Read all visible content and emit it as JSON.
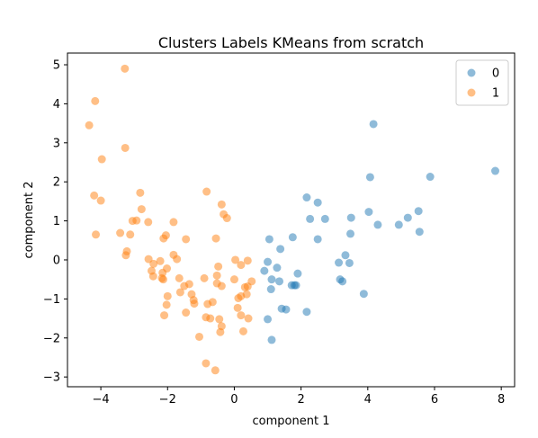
{
  "chart_data": {
    "type": "scatter",
    "title": "Clusters Labels KMeans from scratch",
    "xlabel": "component 1",
    "ylabel": "component 2",
    "xlim": [
      -5.0,
      8.4
    ],
    "ylim": [
      -3.25,
      5.3
    ],
    "xticks": [
      -4,
      -2,
      0,
      2,
      4,
      6,
      8
    ],
    "yticks": [
      -3,
      -2,
      -1,
      0,
      1,
      2,
      3,
      4,
      5
    ],
    "grid": false,
    "legend": {
      "placement": "top-right"
    },
    "series": [
      {
        "name": "0",
        "color": "#1f77b4",
        "points": [
          [
            7.82,
            2.28
          ],
          [
            5.87,
            2.13
          ],
          [
            5.52,
            1.25
          ],
          [
            5.55,
            0.72
          ],
          [
            5.2,
            1.08
          ],
          [
            4.93,
            0.9
          ],
          [
            4.17,
            3.48
          ],
          [
            4.07,
            2.12
          ],
          [
            4.03,
            1.23
          ],
          [
            4.3,
            0.9
          ],
          [
            3.88,
            -0.87
          ],
          [
            3.48,
            0.67
          ],
          [
            3.5,
            1.08
          ],
          [
            3.33,
            0.12
          ],
          [
            3.45,
            -0.08
          ],
          [
            3.13,
            -0.07
          ],
          [
            3.17,
            -0.5
          ],
          [
            3.24,
            -0.55
          ],
          [
            2.72,
            1.05
          ],
          [
            2.5,
            1.47
          ],
          [
            2.17,
            1.6
          ],
          [
            2.27,
            1.05
          ],
          [
            2.5,
            0.53
          ],
          [
            2.17,
            -1.33
          ],
          [
            1.9,
            -0.35
          ],
          [
            1.85,
            -0.65
          ],
          [
            1.8,
            -0.65
          ],
          [
            1.72,
            -0.65
          ],
          [
            1.75,
            0.58
          ],
          [
            1.38,
            0.28
          ],
          [
            1.28,
            -0.2
          ],
          [
            1.35,
            -0.55
          ],
          [
            1.42,
            -1.25
          ],
          [
            1.55,
            -1.27
          ],
          [
            1.05,
            0.53
          ],
          [
            1.12,
            -0.5
          ],
          [
            1.1,
            -0.75
          ],
          [
            1.0,
            -0.05
          ],
          [
            0.9,
            -0.28
          ],
          [
            1.0,
            -1.52
          ],
          [
            1.12,
            -2.05
          ]
        ]
      },
      {
        "name": "1",
        "color": "#ff7f0e",
        "points": [
          [
            -3.28,
            4.9
          ],
          [
            -4.17,
            4.07
          ],
          [
            -4.35,
            3.45
          ],
          [
            -3.27,
            2.87
          ],
          [
            -3.97,
            2.58
          ],
          [
            -4.2,
            1.65
          ],
          [
            -4.0,
            1.52
          ],
          [
            -4.15,
            0.65
          ],
          [
            -3.42,
            0.69
          ],
          [
            -3.12,
            0.65
          ],
          [
            -2.82,
            1.72
          ],
          [
            -2.78,
            1.3
          ],
          [
            -3.05,
            1.0
          ],
          [
            -2.93,
            1.01
          ],
          [
            -2.58,
            0.97
          ],
          [
            -3.25,
            0.12
          ],
          [
            -3.22,
            0.22
          ],
          [
            -2.57,
            0.02
          ],
          [
            -2.42,
            -0.1
          ],
          [
            -2.48,
            -0.28
          ],
          [
            -2.43,
            -0.42
          ],
          [
            -2.22,
            -0.03
          ],
          [
            -2.12,
            0.55
          ],
          [
            -2.05,
            0.63
          ],
          [
            -1.82,
            0.13
          ],
          [
            -1.72,
            0.02
          ],
          [
            -1.82,
            0.97
          ],
          [
            -1.45,
            0.53
          ],
          [
            -2.02,
            -0.22
          ],
          [
            -2.15,
            -0.33
          ],
          [
            -2.17,
            -0.47
          ],
          [
            -2.13,
            -0.5
          ],
          [
            -2.0,
            -0.93
          ],
          [
            -2.03,
            -1.15
          ],
          [
            -2.1,
            -1.42
          ],
          [
            -1.65,
            -0.47
          ],
          [
            -1.62,
            -0.83
          ],
          [
            -1.5,
            -0.67
          ],
          [
            -1.35,
            -0.62
          ],
          [
            -1.28,
            -0.88
          ],
          [
            -1.22,
            -1.03
          ],
          [
            -1.45,
            -1.35
          ],
          [
            -1.2,
            -1.12
          ],
          [
            -1.05,
            -1.97
          ],
          [
            -0.83,
            1.75
          ],
          [
            -0.55,
            0.55
          ],
          [
            -0.38,
            1.42
          ],
          [
            -0.32,
            1.17
          ],
          [
            -0.22,
            1.07
          ],
          [
            -0.9,
            -0.47
          ],
          [
            -0.48,
            -0.17
          ],
          [
            -0.52,
            -0.4
          ],
          [
            -0.52,
            -0.6
          ],
          [
            -0.38,
            -0.67
          ],
          [
            -0.8,
            -1.13
          ],
          [
            -0.65,
            -1.08
          ],
          [
            -0.72,
            -1.5
          ],
          [
            -0.85,
            -1.47
          ],
          [
            -0.45,
            -1.52
          ],
          [
            -0.38,
            -1.7
          ],
          [
            -0.42,
            -1.85
          ],
          [
            -0.85,
            -2.65
          ],
          [
            -0.57,
            -2.83
          ],
          [
            0.03,
            0.0
          ],
          [
            0.2,
            -0.13
          ],
          [
            0.4,
            -0.02
          ],
          [
            0.0,
            -0.5
          ],
          [
            0.4,
            -0.68
          ],
          [
            0.32,
            -0.7
          ],
          [
            0.2,
            -0.93
          ],
          [
            0.12,
            -0.98
          ],
          [
            0.52,
            -0.55
          ],
          [
            0.37,
            -0.88
          ],
          [
            0.1,
            -1.23
          ],
          [
            0.2,
            -1.42
          ],
          [
            0.42,
            -1.5
          ],
          [
            0.27,
            -1.83
          ]
        ]
      }
    ]
  }
}
